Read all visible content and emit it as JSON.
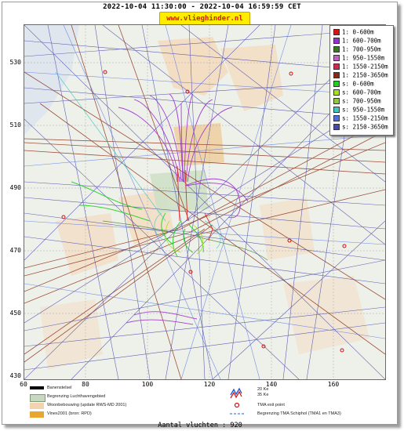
{
  "header": {
    "title": "2022-10-04 11:30:00 - 2022-10-04 16:59:59 CET",
    "site": "www.vlieghinder.nl"
  },
  "axes": {
    "y_ticks": [
      "530",
      "510",
      "490",
      "470",
      "450",
      "430"
    ],
    "x_ticks": [
      "60",
      "80",
      "100",
      "120",
      "140",
      "160"
    ]
  },
  "legend": [
    {
      "label": "1: 0-600m",
      "color": "#e01010"
    },
    {
      "label": "1: 600-700m",
      "color": "#9a30d0"
    },
    {
      "label": "1: 700-950m",
      "color": "#3a7a20"
    },
    {
      "label": "1: 950-1550m",
      "color": "#c060c0"
    },
    {
      "label": "1: 1550-2150m",
      "color": "#d02850"
    },
    {
      "label": "1: 2150-3650m",
      "color": "#8a2a10"
    },
    {
      "label": "s: 0-600m",
      "color": "#20d020"
    },
    {
      "label": "s: 600-700m",
      "color": "#a8e020"
    },
    {
      "label": "s: 700-950m",
      "color": "#90c840"
    },
    {
      "label": "s: 950-1550m",
      "color": "#40c8c0"
    },
    {
      "label": "s: 1550-2150m",
      "color": "#5070e0"
    },
    {
      "label": "s: 2150-3650m",
      "color": "#4848a8"
    }
  ],
  "bottom_legend": {
    "runways": "Banenstelsel",
    "airport_area": "Begrenzing Luchthavengebied",
    "housing": "Woonbebouwing (update RWS-MD 2001)",
    "vinex": "Vinex2001 (bron: RPD)",
    "noise_20": "20 Ke",
    "noise_35": "35 Ke",
    "tma_exit": "TMA exit point",
    "tma_boundary": "Begrenzing TMA Schiphol  (TMA1 en TMA3)"
  },
  "footer": {
    "flights_count": "Aantal vluchten : 920"
  }
}
